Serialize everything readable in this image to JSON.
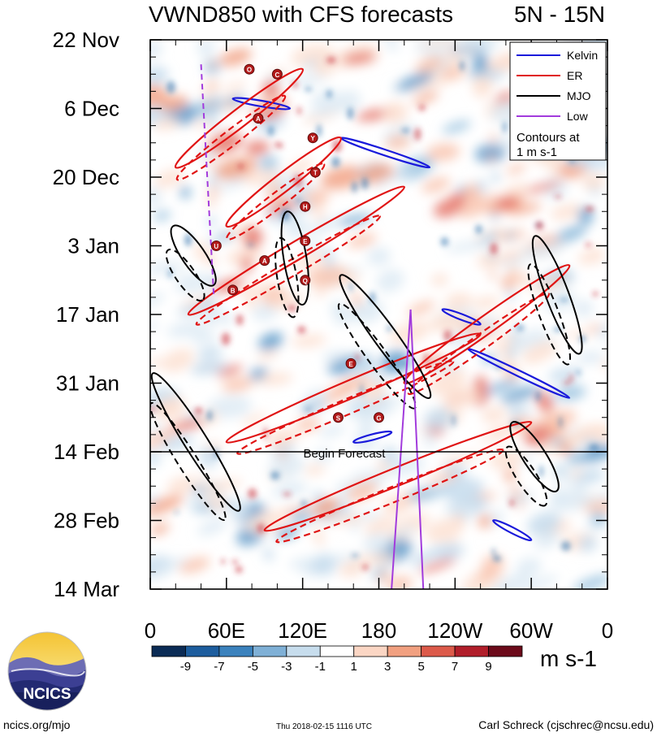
{
  "chart_data": {
    "type": "heatmap",
    "title": "VWND850 with CFS forecasts",
    "region": "5N - 15N",
    "x_tick_labels": [
      "0",
      "60E",
      "120E",
      "180",
      "120W",
      "60W",
      "0"
    ],
    "x_range_deg": [
      0,
      360
    ],
    "y_tick_labels": [
      "22 Nov",
      "6 Dec",
      "20 Dec",
      "3 Jan",
      "17 Jan",
      "31 Jan",
      "14 Feb",
      "28 Feb",
      "14 Mar"
    ],
    "y_range_days": [
      0,
      112
    ],
    "forecast_line_day": 84,
    "forecast_label": "Begin Forecast",
    "legend": {
      "entries": [
        {
          "label": "Kelvin",
          "color": "#1a1adb"
        },
        {
          "label": "ER",
          "color": "#e01414"
        },
        {
          "label": "MJO",
          "color": "#000000"
        },
        {
          "label": "Low",
          "color": "#a23bdc"
        }
      ],
      "note_line1": "Contours at",
      "note_line2": "1 m s-1"
    },
    "colorbar": {
      "labels": [
        "-9",
        "-7",
        "-5",
        "-3",
        "-1",
        "1",
        "3",
        "5",
        "7",
        "9"
      ],
      "unit": "m s-1",
      "colors": [
        "#0b2b55",
        "#1d5d9e",
        "#3b82bd",
        "#7fb0d6",
        "#c7dded",
        "#ffffff",
        "#fbd6c4",
        "#f1a080",
        "#dc5a4a",
        "#b11e2a",
        "#6c0a1a"
      ]
    },
    "series": [
      {
        "name": "Kelvin",
        "segments": [
          [
            [
              65,
              12
            ],
            [
              110,
              14
            ]
          ],
          [
            [
              150,
              20
            ],
            [
              220,
              26
            ]
          ],
          [
            [
              230,
              55
            ],
            [
              260,
              58
            ]
          ],
          [
            [
              250,
              63
            ],
            [
              330,
              73
            ]
          ],
          [
            [
              270,
              98
            ],
            [
              300,
              102
            ]
          ],
          [
            [
              160,
              82
            ],
            [
              190,
              80
            ]
          ]
        ]
      },
      {
        "name": "ER",
        "segments": [
          [
            [
              20,
              26
            ],
            [
              120,
              6
            ]
          ],
          [
            [
              60,
              38
            ],
            [
              150,
              20
            ]
          ],
          [
            [
              30,
              56
            ],
            [
              200,
              30
            ]
          ],
          [
            [
              60,
              82
            ],
            [
              260,
              60
            ]
          ],
          [
            [
              90,
              100
            ],
            [
              300,
              78
            ]
          ],
          [
            [
              200,
              70
            ],
            [
              330,
              46
            ]
          ]
        ]
      },
      {
        "name": "MJO",
        "segments": [
          [
            [
              2,
              68
            ],
            [
              70,
              96
            ]
          ],
          [
            [
              108,
              35
            ],
            [
              120,
              54
            ]
          ],
          [
            [
              150,
              48
            ],
            [
              220,
              73
            ]
          ],
          [
            [
              303,
              40
            ],
            [
              338,
              64
            ]
          ],
          [
            [
              18,
              38
            ],
            [
              50,
              50
            ]
          ],
          [
            [
              285,
              78
            ],
            [
              320,
              92
            ]
          ]
        ]
      },
      {
        "name": "Low",
        "segments": [
          [
            [
              40,
              5
            ],
            [
              50,
              52
            ]
          ],
          [
            [
              190,
              112
            ],
            [
              205,
              55
            ]
          ],
          [
            [
              205,
              55
            ],
            [
              215,
              112
            ]
          ]
        ]
      }
    ],
    "cyclone_markers": [
      "O",
      "C",
      "A",
      "Y",
      "T",
      "H",
      "E",
      "U",
      "A",
      "B",
      "Q",
      "E",
      "S",
      "G"
    ]
  },
  "footer": {
    "logo_text": "NCICS",
    "left": "ncics.org/mjo",
    "center": "Thu 2018-02-15 1116 UTC",
    "right": "Carl Schreck (cjschrec@ncsu.edu)"
  }
}
